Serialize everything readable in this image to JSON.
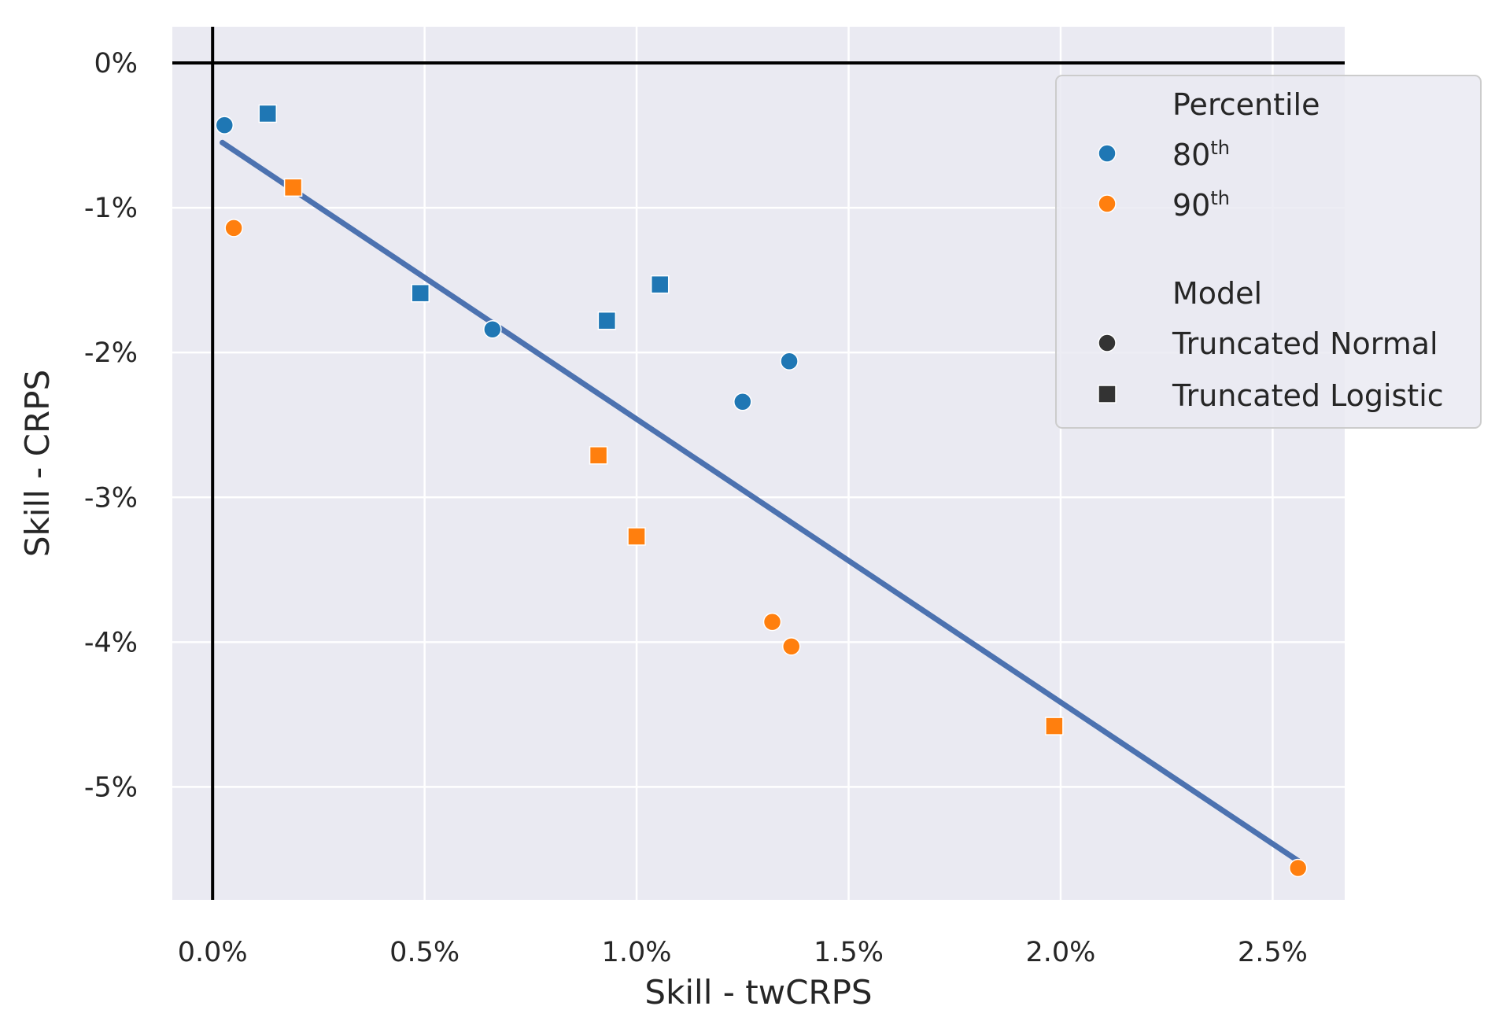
{
  "chart_data": {
    "type": "scatter",
    "xlabel": "Skill - twCRPS",
    "ylabel": "Skill - CRPS",
    "xlim": [
      -0.095,
      2.67
    ],
    "ylim": [
      -5.78,
      0.25
    ],
    "x_ticks": [
      0.0,
      0.5,
      1.0,
      1.5,
      2.0,
      2.5
    ],
    "x_tick_labels": [
      "0.0%",
      "0.5%",
      "1.0%",
      "1.5%",
      "2.0%",
      "2.5%"
    ],
    "y_ticks": [
      0,
      -1,
      -2,
      -3,
      -4,
      -5
    ],
    "y_tick_labels": [
      "0%",
      "-1%",
      "-2%",
      "-3%",
      "-4%",
      "-5%"
    ],
    "grid": true,
    "reference_lines": {
      "x": 0,
      "y": 0
    },
    "legend": {
      "placement": "upper-right-outside",
      "sections": [
        {
          "title": "Percentile",
          "entries": [
            {
              "label": "80",
              "sup": "th",
              "color": "#1f77b4",
              "marker": "circle"
            },
            {
              "label": "90",
              "sup": "th",
              "color": "#ff7f0e",
              "marker": "circle"
            }
          ]
        },
        {
          "title": "Model",
          "entries": [
            {
              "label": "Truncated Normal",
              "color": "#333333",
              "marker": "circle"
            },
            {
              "label": "Truncated Logistic",
              "color": "#333333",
              "marker": "square"
            }
          ]
        }
      ]
    },
    "series": [
      {
        "name": "80th - Truncated Normal",
        "color": "#1f77b4",
        "marker": "circle",
        "points": [
          [
            0.028,
            -0.43
          ],
          [
            0.66,
            -1.84
          ],
          [
            1.25,
            -2.34
          ],
          [
            1.36,
            -2.06
          ]
        ]
      },
      {
        "name": "80th - Truncated Logistic",
        "color": "#1f77b4",
        "marker": "square",
        "points": [
          [
            0.13,
            -0.35
          ],
          [
            0.49,
            -1.59
          ],
          [
            0.93,
            -1.78
          ],
          [
            1.055,
            -1.53
          ]
        ]
      },
      {
        "name": "90th - Truncated Normal",
        "color": "#ff7f0e",
        "marker": "circle",
        "points": [
          [
            0.05,
            -1.14
          ],
          [
            1.32,
            -3.86
          ],
          [
            1.365,
            -4.03
          ],
          [
            2.56,
            -5.56
          ]
        ]
      },
      {
        "name": "90th - Truncated Logistic",
        "color": "#ff7f0e",
        "marker": "square",
        "points": [
          [
            0.19,
            -0.86
          ],
          [
            0.91,
            -2.71
          ],
          [
            1.0,
            -3.27
          ],
          [
            1.985,
            -4.58
          ]
        ]
      }
    ],
    "trend_line": {
      "color": "#4c72b0",
      "x": [
        0.023,
        2.56
      ],
      "y": [
        -0.55,
        -5.51
      ]
    }
  }
}
